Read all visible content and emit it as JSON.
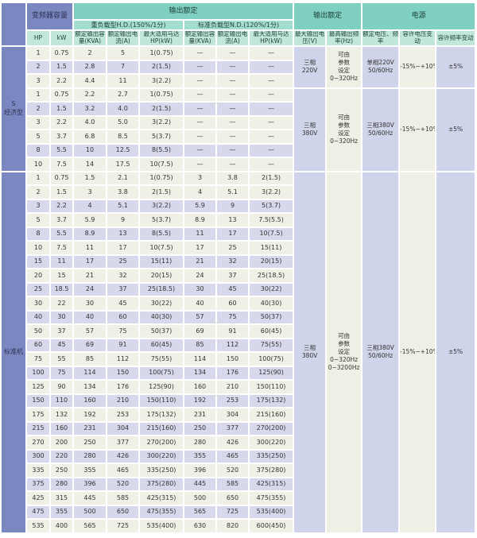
{
  "colors": {
    "header_blue": "#7b87c0",
    "header_teal": "#7fd0c1",
    "header_teal_mid": "#a3ddd0",
    "header_teal_light": "#c0e7da",
    "row_cream": "#f1f0e6",
    "row_lavender": "#d8d8ec",
    "merged_lavender": "#cfd4ea",
    "merged_cream": "#f0efe5"
  },
  "header": {
    "corner": "",
    "capacity": "变频器容量",
    "output_rating": "输出额定",
    "hd": "重负载型H.D.(150%/1分)",
    "nd": "标准负载型N.D.(120%/1分)",
    "hp": "HP",
    "kw": "kW",
    "kva": "额定输出容量(KVA)",
    "amp": "额定输出电流(A)",
    "motor": "最大适用马达HP(kW)",
    "max_voltage": "最大输出电压(V)",
    "max_freq": "最高输出频率(Hz)",
    "power": "电源",
    "rated_vf": "额定电压、频率",
    "volt_var": "容许电压变动",
    "freq_var": "容许频率变动"
  },
  "groups": [
    {
      "id": "economy",
      "label": [
        "S",
        "经济型"
      ],
      "blocks": [
        {
          "rows": [
            [
              "1",
              "0.75",
              "2",
              "5",
              "1(0.75)",
              "—",
              "—",
              "—"
            ],
            [
              "2",
              "1.5",
              "2.8",
              "7",
              "2(1.5)",
              "—",
              "—",
              "—"
            ],
            [
              "3",
              "2.2",
              "4.4",
              "11",
              "3(2.2)",
              "—",
              "—",
              "—"
            ]
          ],
          "merged": {
            "voltage": [
              "三相",
              "220V"
            ],
            "freq": [
              "可由",
              "参数",
              "设定",
              "0~320Hz"
            ],
            "supply": [
              "单相220V",
              "50/60Hz"
            ],
            "volt_var": [
              "-15%~+10%"
            ],
            "freq_var": [
              "±5%"
            ]
          }
        },
        {
          "rows": [
            [
              "1",
              "0.75",
              "2.2",
              "2.7",
              "1(0.75)",
              "—",
              "—",
              "—"
            ],
            [
              "2",
              "1.5",
              "3.2",
              "4.0",
              "2(1.5)",
              "—",
              "—",
              "—"
            ],
            [
              "3",
              "2.2",
              "4.0",
              "5.0",
              "3(2.2)",
              "—",
              "—",
              "—"
            ],
            [
              "5",
              "3.7",
              "6.8",
              "8.5",
              "5(3.7)",
              "—",
              "—",
              "—"
            ],
            [
              "8",
              "5.5",
              "10",
              "12.5",
              "8(5.5)",
              "—",
              "—",
              "—"
            ],
            [
              "10",
              "7.5",
              "14",
              "17.5",
              "10(7.5)",
              "—",
              "—",
              "—"
            ]
          ],
          "merged": {
            "voltage": [
              "三相",
              "380V"
            ],
            "freq": [
              "可由",
              "参数",
              "设定",
              "0~320Hz"
            ],
            "supply": [
              "三相380V",
              "50/60Hz"
            ],
            "volt_var": [
              "-15%~+10%"
            ],
            "freq_var": [
              "±5%"
            ]
          }
        }
      ]
    },
    {
      "id": "standard",
      "label": [
        "标准机"
      ],
      "blocks": [
        {
          "rows": [
            [
              "1",
              "0.75",
              "1.5",
              "2.1",
              "1(0.75)",
              "3",
              "3.8",
              "2(1.5)"
            ],
            [
              "2",
              "1.5",
              "3",
              "3.8",
              "2(1.5)",
              "4",
              "5.1",
              "3(2.2)"
            ],
            [
              "3",
              "2.2",
              "4",
              "5.1",
              "3(2.2)",
              "5.9",
              "9",
              "5(3.7)"
            ],
            [
              "5",
              "3.7",
              "5.9",
              "9",
              "5(3.7)",
              "8.9",
              "13",
              "7.5(5.5)"
            ],
            [
              "8",
              "5.5",
              "8.9",
              "13",
              "8(5.5)",
              "11",
              "17",
              "10(7.5)"
            ],
            [
              "10",
              "7.5",
              "11",
              "17",
              "10(7.5)",
              "17",
              "25",
              "15(11)"
            ],
            [
              "15",
              "11",
              "17",
              "25",
              "15(11)",
              "21",
              "32",
              "20(15)"
            ],
            [
              "20",
              "15",
              "21",
              "32",
              "20(15)",
              "24",
              "37",
              "25(18.5)"
            ],
            [
              "25",
              "18.5",
              "24",
              "37",
              "25(18.5)",
              "30",
              "45",
              "30(22)"
            ],
            [
              "30",
              "22",
              "30",
              "45",
              "30(22)",
              "40",
              "60",
              "40(30)"
            ],
            [
              "40",
              "30",
              "40",
              "60",
              "40(30)",
              "57",
              "75",
              "50(37)"
            ],
            [
              "50",
              "37",
              "57",
              "75",
              "50(37)",
              "69",
              "91",
              "60(45)"
            ],
            [
              "60",
              "45",
              "69",
              "91",
              "60(45)",
              "85",
              "112",
              "75(55)"
            ],
            [
              "75",
              "55",
              "85",
              "112",
              "75(55)",
              "114",
              "150",
              "100(75)"
            ],
            [
              "100",
              "75",
              "114",
              "150",
              "100(75)",
              "134",
              "176",
              "125(90)"
            ],
            [
              "125",
              "90",
              "134",
              "176",
              "125(90)",
              "160",
              "210",
              "150(110)"
            ],
            [
              "150",
              "110",
              "160",
              "210",
              "150(110)",
              "192",
              "253",
              "175(132)"
            ],
            [
              "175",
              "132",
              "192",
              "253",
              "175(132)",
              "231",
              "304",
              "215(160)"
            ],
            [
              "215",
              "160",
              "231",
              "304",
              "215(160)",
              "250",
              "377",
              "270(200)"
            ],
            [
              "270",
              "200",
              "250",
              "377",
              "270(200)",
              "280",
              "426",
              "300(220)"
            ],
            [
              "300",
              "220",
              "280",
              "426",
              "300(220)",
              "355",
              "465",
              "335(250)"
            ],
            [
              "335",
              "250",
              "355",
              "465",
              "335(250)",
              "396",
              "520",
              "375(280)"
            ],
            [
              "375",
              "280",
              "396",
              "520",
              "375(280)",
              "445",
              "585",
              "425(315)"
            ],
            [
              "425",
              "315",
              "445",
              "585",
              "425(315)",
              "500",
              "650",
              "475(355)"
            ],
            [
              "475",
              "355",
              "500",
              "650",
              "475(355)",
              "565",
              "725",
              "535(400)"
            ],
            [
              "535",
              "400",
              "565",
              "725",
              "535(400)",
              "630",
              "820",
              "600(450)"
            ]
          ],
          "merged": {
            "voltage": [
              "三相",
              "380V"
            ],
            "freq": [
              "可由",
              "参数",
              "设定",
              "0~320Hz",
              "0~3200Hz"
            ],
            "supply": [
              "三相380V",
              "50/60Hz"
            ],
            "volt_var": [
              "-15%~+10%"
            ],
            "freq_var": [
              "±5%"
            ]
          }
        }
      ]
    }
  ]
}
